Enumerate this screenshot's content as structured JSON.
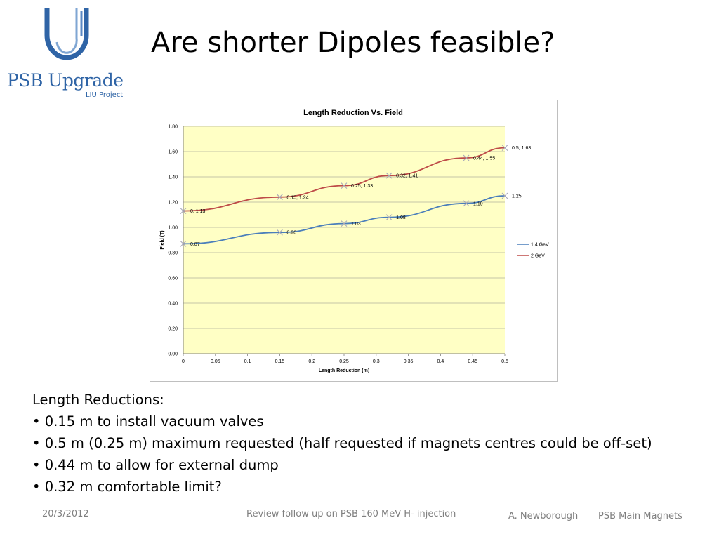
{
  "slide": {
    "title": "Are shorter Dipoles feasible?",
    "logo": {
      "main": "PSB Upgrade",
      "sub": "LIU Project"
    },
    "intro": "Length Reductions:",
    "bullets": [
      " 0.15 m to install vacuum valves",
      "0.5 m (0.25 m) maximum requested (half requested if magnets centres could be off-set)",
      "0.44 m to allow for external dump",
      "0.32 m comfortable limit?"
    ],
    "footer": {
      "date": "20/3/2012",
      "center": "Review follow up on PSB 160 MeV H- injection",
      "author": "A. Newborough",
      "topic": "PSB Main Magnets"
    }
  },
  "colors": {
    "logo_blue": "#2f64a6",
    "plot_background": "#ffffc5",
    "series_1_4GeV": "#4a7ebb",
    "series_2GeV": "#be4b48"
  },
  "icons": {
    "logo": "psb-upgrade-logo-icon"
  },
  "chart_data": {
    "type": "line",
    "title": "Length Reduction Vs. Field",
    "xlabel": "Length Reduction (m)",
    "ylabel": "Field (T)",
    "xlim": [
      0,
      0.5
    ],
    "ylim": [
      0,
      1.8
    ],
    "x_ticks": [
      "0",
      "0.05",
      "0.1",
      "0.15",
      "0.2",
      "0.25",
      "0.3",
      "0.35",
      "0.4",
      "0.45",
      "0.5"
    ],
    "y_ticks": [
      "0.00",
      "0.20",
      "0.40",
      "0.60",
      "0.80",
      "1.00",
      "1.20",
      "1.40",
      "1.60",
      "1.80"
    ],
    "grid": "horizontal",
    "legend": "right",
    "series": [
      {
        "name": "1.4 GeV",
        "x": [
          0,
          0.15,
          0.25,
          0.32,
          0.44,
          0.5
        ],
        "y": [
          0.87,
          0.96,
          1.03,
          1.08,
          1.19,
          1.25
        ],
        "labels": [
          "0.87",
          "0.96",
          "1.03",
          "1.08",
          "1.19",
          "1.25"
        ]
      },
      {
        "name": "2 GeV",
        "x": [
          0,
          0.15,
          0.25,
          0.32,
          0.44,
          0.5
        ],
        "y": [
          1.13,
          1.24,
          1.33,
          1.41,
          1.55,
          1.63
        ],
        "labels": [
          "0, 1.13",
          "0.15, 1.24",
          "0.25, 1.33",
          "0.32, 1.41",
          "0.44, 1.55",
          "0.5, 1.63"
        ]
      }
    ]
  }
}
